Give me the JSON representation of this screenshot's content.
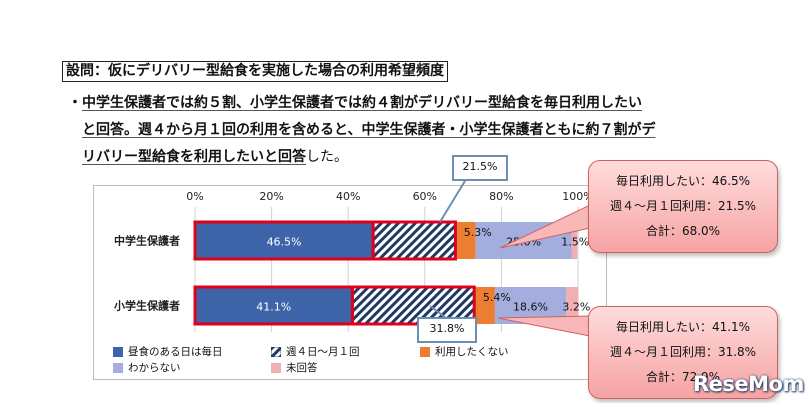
{
  "question": "設問：仮にデリバリー型給食を実施した場合の利用希望頻度",
  "summary": {
    "bullet": "・",
    "line1": "中学生保護者では約５割、小学生保護者では約４割がデリバリー型給食を毎日利用したい",
    "line2": "と回答。週４から月１回の利用を含めると、中学生保護者・小学生保護者ともに約７割がデ",
    "line3": "リバリー型給食を利用したいと回答",
    "line3_tail": "した。"
  },
  "chart_data": {
    "type": "bar",
    "orientation": "horizontal-stacked-100",
    "x_ticks": [
      "0%",
      "20%",
      "40%",
      "60%",
      "80%",
      "100%"
    ],
    "xlim": [
      0,
      100
    ],
    "categories": [
      "中学生保護者",
      "小学生保護者"
    ],
    "series": [
      {
        "name": "昼食のある日は毎日",
        "values": [
          46.5,
          41.1
        ],
        "labels": [
          "46.5%",
          "41.1%"
        ],
        "color": "#3d64a8",
        "pattern": "solid"
      },
      {
        "name": "週４日～月１回",
        "values": [
          21.5,
          31.8
        ],
        "labels": [
          "",
          ""
        ],
        "color": "#1f3864",
        "pattern": "hatch"
      },
      {
        "name": "利用したくない",
        "values": [
          5.3,
          5.4
        ],
        "labels": [
          "5.3%",
          "5.4%"
        ],
        "color": "#ed7d31",
        "pattern": "solid"
      },
      {
        "name": "わからない",
        "values": [
          25.0,
          18.6
        ],
        "labels": [
          "25.0%",
          "18.6%"
        ],
        "color": "#a3aede",
        "pattern": "solid"
      },
      {
        "name": "未回答",
        "values": [
          1.5,
          3.2
        ],
        "labels": [
          "1.5%",
          "3.2%"
        ],
        "color": "#f1aeb5",
        "pattern": "solid"
      }
    ],
    "grid": true,
    "legend_position": "bottom"
  },
  "box_labels": {
    "upper": "21.5%",
    "lower": "31.8%"
  },
  "callouts": {
    "upper": {
      "line1": "毎日利用したい：46.5%",
      "line2": "週４～月１回利用：21.5%",
      "line3": "合計：68.0%"
    },
    "lower": {
      "line1": "毎日利用したい：41.1%",
      "line2": "週４～月１回利用：31.8%",
      "line3": "合計：72.9%"
    }
  },
  "colors": {
    "highlight_border": "#e0001b",
    "callout_fill": "#f8b8b8",
    "callout_border": "#d06060"
  },
  "logo": {
    "text": "ReseMom"
  }
}
